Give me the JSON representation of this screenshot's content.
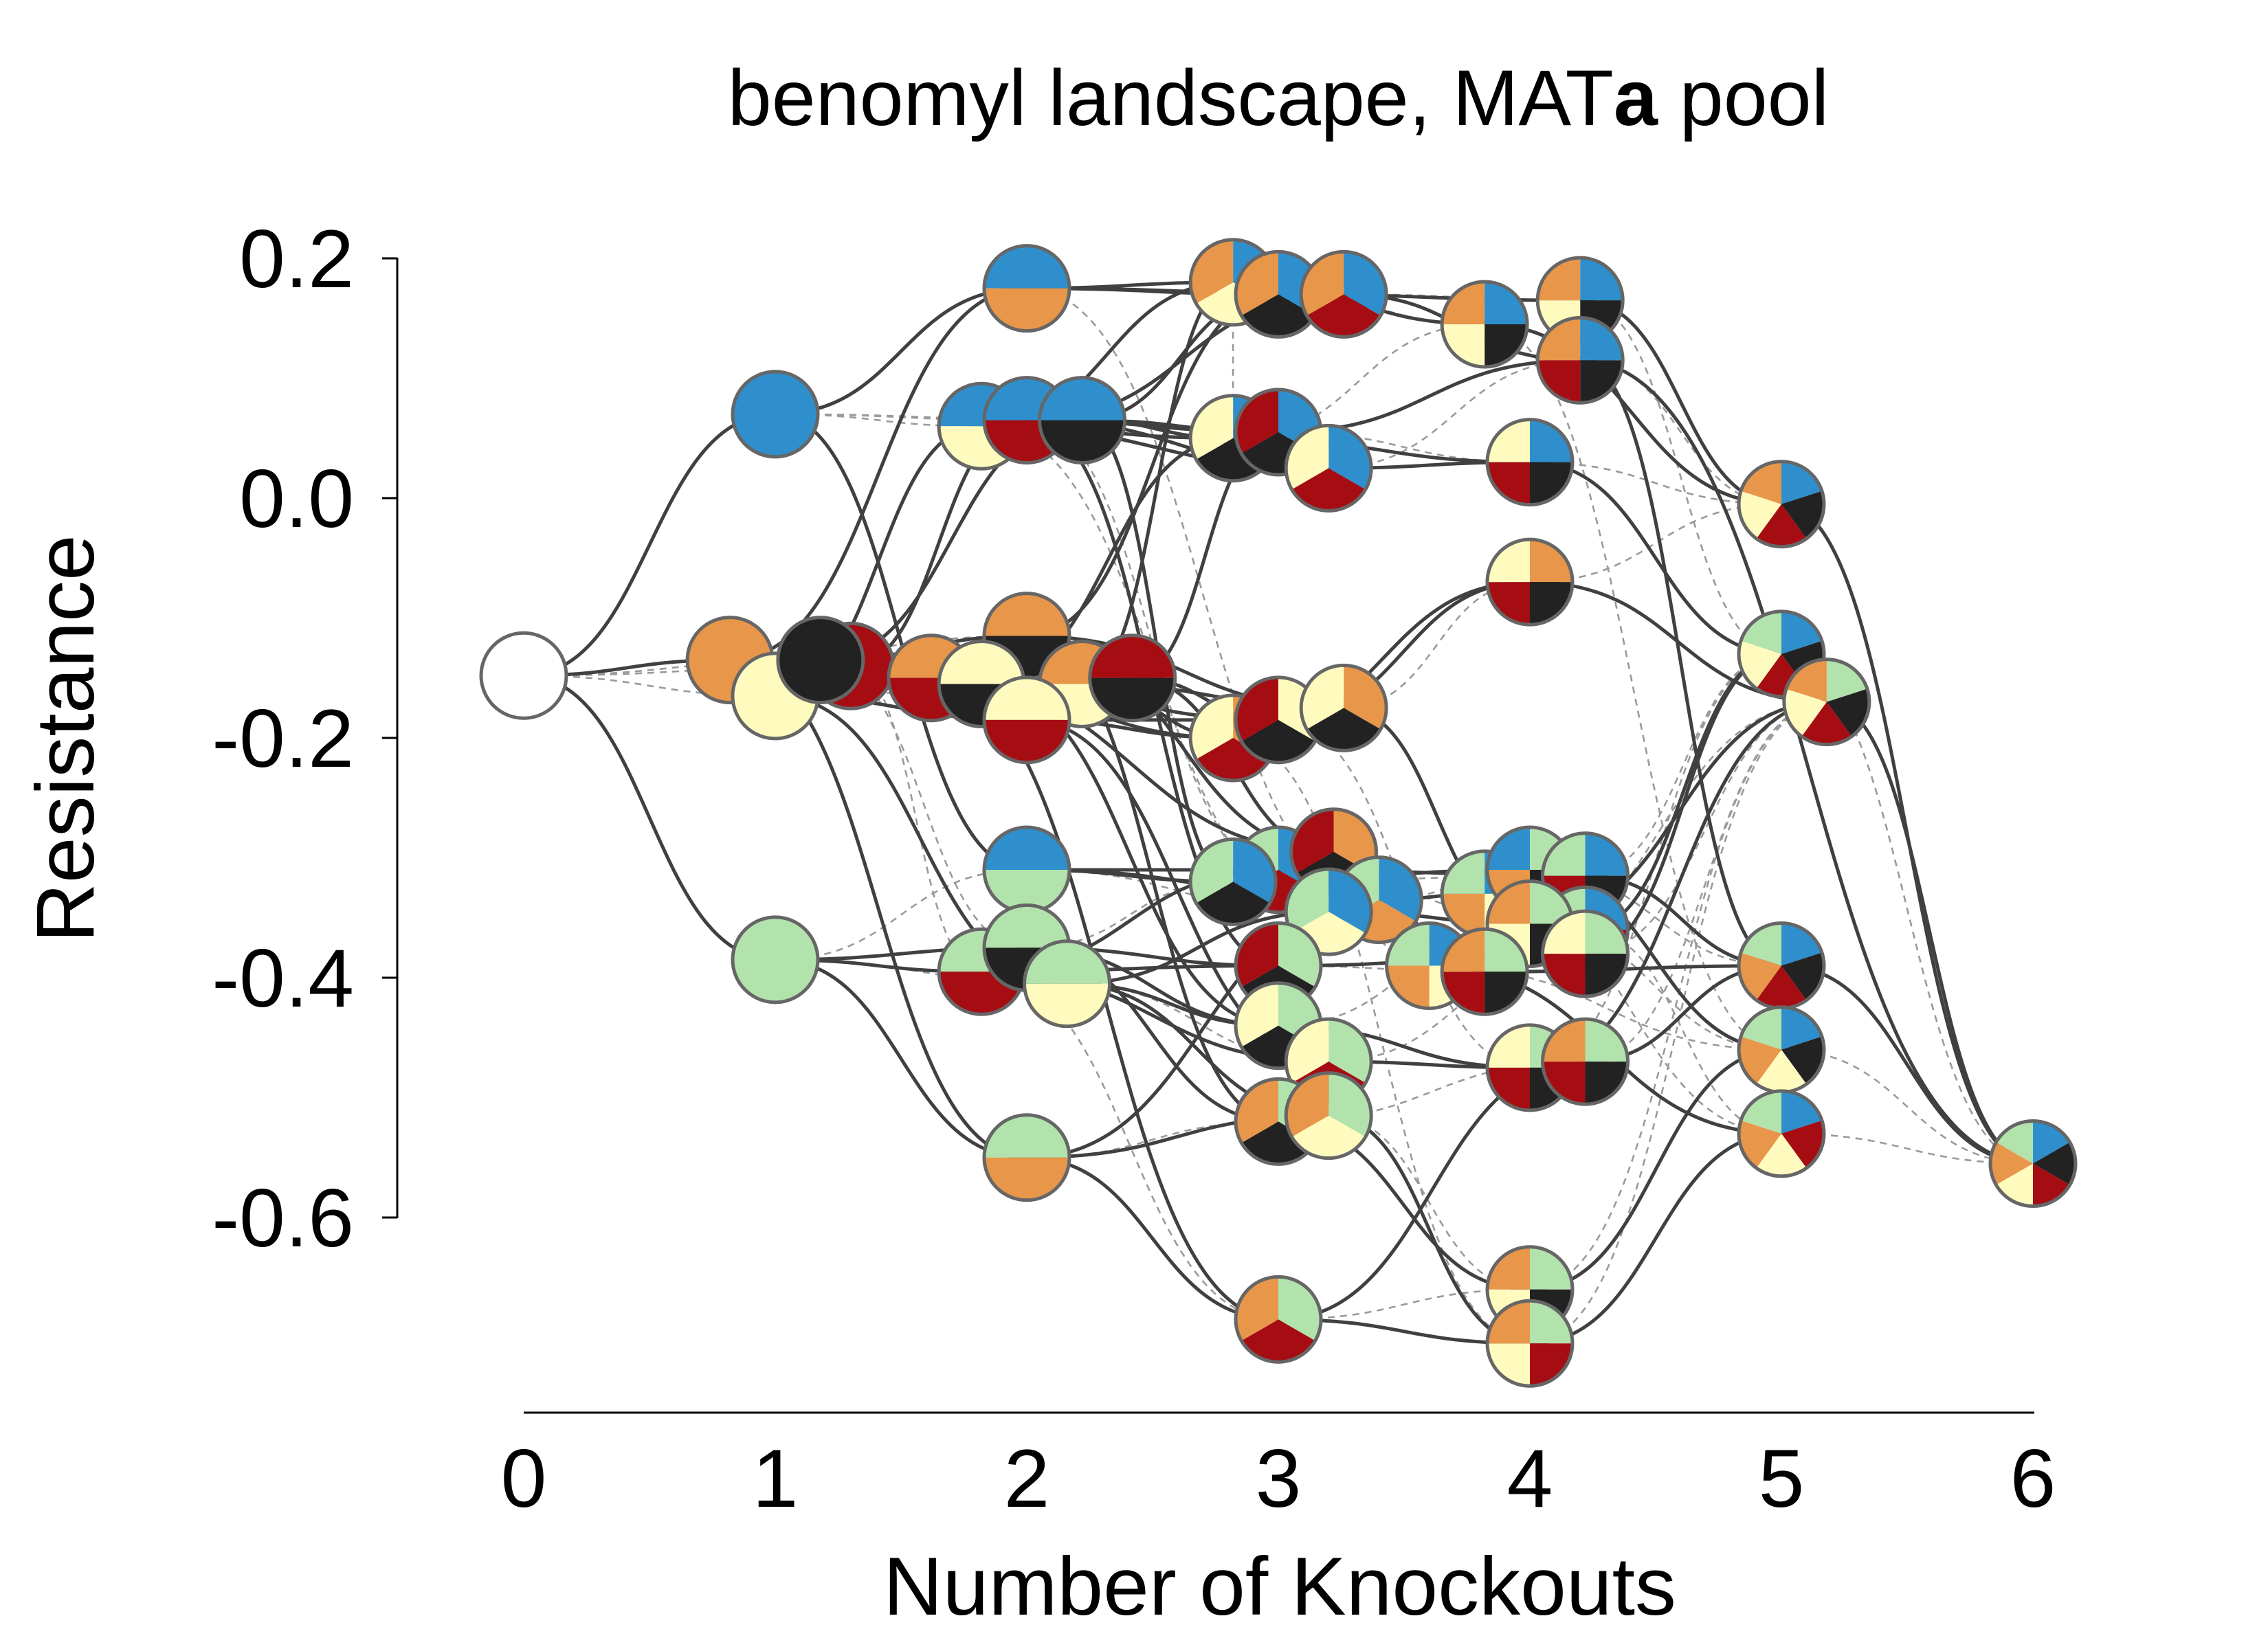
{
  "chart_data": {
    "type": "scatter",
    "title": "benomyl landscape, MAT",
    "title_bold_suffix": "a",
    "title_tail": " pool",
    "xlabel": "Number of Knockouts",
    "ylabel": "Resistance",
    "xlim": [
      0,
      6
    ],
    "ylim": [
      -0.75,
      0.2
    ],
    "xticks": [
      0,
      1,
      2,
      3,
      4,
      5,
      6
    ],
    "yticks": [
      0.2,
      0.0,
      -0.2,
      -0.4,
      -0.6
    ],
    "ytick_labels": [
      "0.2",
      "0.0",
      "-0.2",
      "-0.4",
      "-0.6"
    ],
    "genes": [
      "blue",
      "orange",
      "green",
      "yellow",
      "red",
      "black"
    ],
    "gene_colors": {
      "blue": "#2e8fcc",
      "orange": "#e8964a",
      "green": "#b2e3ad",
      "yellow": "#fffbbf",
      "red": "#a50d13",
      "black": "#222222",
      "none": "#ffffff"
    },
    "nodes": [
      {
        "id": "wt",
        "x": 0,
        "y": -0.148,
        "genes": []
      },
      {
        "id": "B",
        "x": 1,
        "y": 0.07,
        "genes": [
          "blue"
        ]
      },
      {
        "id": "O",
        "x": 0.82,
        "y": -0.135,
        "genes": [
          "orange"
        ]
      },
      {
        "id": "Y",
        "x": 1,
        "y": -0.165,
        "genes": [
          "yellow"
        ]
      },
      {
        "id": "R",
        "x": 1.3,
        "y": -0.14,
        "genes": [
          "red"
        ]
      },
      {
        "id": "K",
        "x": 1.18,
        "y": -0.135,
        "genes": [
          "black"
        ]
      },
      {
        "id": "G",
        "x": 1,
        "y": -0.385,
        "genes": [
          "green"
        ]
      },
      {
        "id": "BO",
        "x": 2,
        "y": 0.175,
        "genes": [
          "blue",
          "orange"
        ]
      },
      {
        "id": "BY",
        "x": 1.82,
        "y": 0.06,
        "genes": [
          "blue",
          "yellow"
        ]
      },
      {
        "id": "BR",
        "x": 2.0,
        "y": 0.065,
        "genes": [
          "blue",
          "red"
        ]
      },
      {
        "id": "BK",
        "x": 2.22,
        "y": 0.065,
        "genes": [
          "blue",
          "black"
        ]
      },
      {
        "id": "OR",
        "x": 1.62,
        "y": -0.15,
        "genes": [
          "orange",
          "red"
        ]
      },
      {
        "id": "OK",
        "x": 2.0,
        "y": -0.115,
        "genes": [
          "orange",
          "black"
        ]
      },
      {
        "id": "OY",
        "x": 2.22,
        "y": -0.155,
        "genes": [
          "orange",
          "yellow"
        ]
      },
      {
        "id": "YK",
        "x": 1.82,
        "y": -0.155,
        "genes": [
          "yellow",
          "black"
        ]
      },
      {
        "id": "YR",
        "x": 2.0,
        "y": -0.185,
        "genes": [
          "yellow",
          "red"
        ]
      },
      {
        "id": "RK",
        "x": 2.42,
        "y": -0.15,
        "genes": [
          "red",
          "black"
        ]
      },
      {
        "id": "BG",
        "x": 2.0,
        "y": -0.31,
        "genes": [
          "blue",
          "green"
        ]
      },
      {
        "id": "GR",
        "x": 1.82,
        "y": -0.395,
        "genes": [
          "green",
          "red"
        ]
      },
      {
        "id": "GK",
        "x": 2.0,
        "y": -0.375,
        "genes": [
          "green",
          "black"
        ]
      },
      {
        "id": "GY",
        "x": 2.16,
        "y": -0.405,
        "genes": [
          "green",
          "yellow"
        ]
      },
      {
        "id": "GO",
        "x": 2.0,
        "y": -0.55,
        "genes": [
          "green",
          "orange"
        ]
      },
      {
        "id": "BOY",
        "x": 2.82,
        "y": 0.18,
        "genes": [
          "blue",
          "yellow",
          "orange"
        ]
      },
      {
        "id": "BOK",
        "x": 3.0,
        "y": 0.17,
        "genes": [
          "blue",
          "black",
          "orange"
        ]
      },
      {
        "id": "BOR",
        "x": 3.26,
        "y": 0.17,
        "genes": [
          "blue",
          "red",
          "orange"
        ]
      },
      {
        "id": "BYK",
        "x": 2.82,
        "y": 0.05,
        "genes": [
          "blue",
          "black",
          "yellow"
        ]
      },
      {
        "id": "RBK",
        "x": 3.0,
        "y": 0.055,
        "genes": [
          "blue",
          "black",
          "red"
        ]
      },
      {
        "id": "BRY",
        "x": 3.2,
        "y": 0.025,
        "genes": [
          "blue",
          "red",
          "yellow"
        ]
      },
      {
        "id": "OYR",
        "x": 2.82,
        "y": -0.2,
        "genes": [
          "orange",
          "red",
          "yellow"
        ]
      },
      {
        "id": "YRK",
        "x": 3.0,
        "y": -0.185,
        "genes": [
          "yellow",
          "black",
          "red"
        ]
      },
      {
        "id": "OYK",
        "x": 3.26,
        "y": -0.175,
        "genes": [
          "orange",
          "black",
          "yellow"
        ]
      },
      {
        "id": "BGR",
        "x": 3.0,
        "y": -0.31,
        "genes": [
          "blue",
          "red",
          "green"
        ]
      },
      {
        "id": "BGK",
        "x": 2.82,
        "y": -0.32,
        "genes": [
          "blue",
          "black",
          "green"
        ]
      },
      {
        "id": "ORK",
        "x": 3.22,
        "y": -0.295,
        "genes": [
          "orange",
          "black",
          "red"
        ]
      },
      {
        "id": "BGO",
        "x": 3.4,
        "y": -0.335,
        "genes": [
          "blue",
          "orange",
          "green"
        ]
      },
      {
        "id": "BGY",
        "x": 3.2,
        "y": -0.345,
        "genes": [
          "blue",
          "yellow",
          "green"
        ]
      },
      {
        "id": "GRK",
        "x": 3.0,
        "y": -0.39,
        "genes": [
          "green",
          "black",
          "red"
        ]
      },
      {
        "id": "GYK",
        "x": 3.0,
        "y": -0.44,
        "genes": [
          "green",
          "black",
          "yellow"
        ]
      },
      {
        "id": "GRY",
        "x": 3.2,
        "y": -0.47,
        "genes": [
          "green",
          "red",
          "yellow"
        ]
      },
      {
        "id": "GOK",
        "x": 3.0,
        "y": -0.52,
        "genes": [
          "green",
          "black",
          "orange"
        ]
      },
      {
        "id": "GOY",
        "x": 3.2,
        "y": -0.515,
        "genes": [
          "green",
          "yellow",
          "orange"
        ]
      },
      {
        "id": "GOR",
        "x": 3.0,
        "y": -0.685,
        "genes": [
          "green",
          "red",
          "orange"
        ]
      },
      {
        "id": "BOYK",
        "x": 3.82,
        "y": 0.145,
        "genes": [
          "blue",
          "black",
          "yellow",
          "orange"
        ]
      },
      {
        "id": "BOYK2",
        "x": 4.2,
        "y": 0.165,
        "genes": [
          "blue",
          "black",
          "yellow",
          "orange"
        ]
      },
      {
        "id": "BORK",
        "x": 4.2,
        "y": 0.115,
        "genes": [
          "blue",
          "black",
          "red",
          "orange"
        ]
      },
      {
        "id": "BYRK",
        "x": 4.0,
        "y": 0.03,
        "genes": [
          "blue",
          "black",
          "red",
          "yellow"
        ]
      },
      {
        "id": "OYRK",
        "x": 4.0,
        "y": -0.07,
        "genes": [
          "orange",
          "black",
          "red",
          "yellow"
        ]
      },
      {
        "id": "BGOY",
        "x": 3.82,
        "y": -0.33,
        "genes": [
          "blue",
          "yellow",
          "orange",
          "green"
        ]
      },
      {
        "id": "BGOK",
        "x": 4.0,
        "y": -0.31,
        "genes": [
          "green",
          "black",
          "orange",
          "blue"
        ]
      },
      {
        "id": "BGRK",
        "x": 4.22,
        "y": -0.315,
        "genes": [
          "blue",
          "black",
          "red",
          "green"
        ]
      },
      {
        "id": "BGYR",
        "x": 4.22,
        "y": -0.36,
        "genes": [
          "blue",
          "red",
          "yellow",
          "green"
        ]
      },
      {
        "id": "GOYK",
        "x": 4.0,
        "y": -0.355,
        "genes": [
          "green",
          "black",
          "yellow",
          "orange"
        ]
      },
      {
        "id": "GYRK",
        "x": 4.22,
        "y": -0.38,
        "genes": [
          "green",
          "black",
          "red",
          "yellow"
        ]
      },
      {
        "id": "BGOY2",
        "x": 3.6,
        "y": -0.39,
        "genes": [
          "blue",
          "yellow",
          "orange",
          "green"
        ]
      },
      {
        "id": "GORK",
        "x": 3.82,
        "y": -0.395,
        "genes": [
          "green",
          "black",
          "red",
          "orange"
        ]
      },
      {
        "id": "GYRK2",
        "x": 4.0,
        "y": -0.475,
        "genes": [
          "green",
          "black",
          "red",
          "yellow"
        ]
      },
      {
        "id": "GORK2",
        "x": 4.22,
        "y": -0.47,
        "genes": [
          "green",
          "black",
          "red",
          "orange"
        ]
      },
      {
        "id": "GOYK2",
        "x": 4.0,
        "y": -0.66,
        "genes": [
          "green",
          "black",
          "yellow",
          "orange"
        ]
      },
      {
        "id": "GOYR",
        "x": 4.0,
        "y": -0.705,
        "genes": [
          "green",
          "red",
          "yellow",
          "orange"
        ]
      },
      {
        "id": "BOYRK",
        "x": 5.0,
        "y": -0.005,
        "genes": [
          "blue",
          "black",
          "red",
          "yellow",
          "orange"
        ]
      },
      {
        "id": "BGYRK",
        "x": 5.0,
        "y": -0.13,
        "genes": [
          "blue",
          "black",
          "red",
          "yellow",
          "green"
        ]
      },
      {
        "id": "GOYRK",
        "x": 5.18,
        "y": -0.17,
        "genes": [
          "green",
          "black",
          "red",
          "yellow",
          "orange"
        ]
      },
      {
        "id": "BGORK",
        "x": 5.0,
        "y": -0.39,
        "genes": [
          "blue",
          "black",
          "red",
          "orange",
          "green"
        ]
      },
      {
        "id": "BGOYK",
        "x": 5.0,
        "y": -0.46,
        "genes": [
          "blue",
          "black",
          "yellow",
          "orange",
          "green"
        ]
      },
      {
        "id": "BGOYR",
        "x": 5.0,
        "y": -0.53,
        "genes": [
          "blue",
          "red",
          "yellow",
          "orange",
          "green"
        ]
      },
      {
        "id": "ALL",
        "x": 6.0,
        "y": -0.555,
        "genes": [
          "blue",
          "black",
          "red",
          "yellow",
          "orange",
          "green"
        ]
      }
    ],
    "edges_solid": [
      [
        "wt",
        "B"
      ],
      [
        "wt",
        "G"
      ],
      [
        "wt",
        "O"
      ],
      [
        "B",
        "BO"
      ],
      [
        "B",
        "BG"
      ],
      [
        "Y",
        "BY"
      ],
      [
        "Y",
        "GY"
      ],
      [
        "Y",
        "YR"
      ],
      [
        "O",
        "BO"
      ],
      [
        "O",
        "GO"
      ],
      [
        "O",
        "OR"
      ],
      [
        "G",
        "GR"
      ],
      [
        "G",
        "GO"
      ],
      [
        "G",
        "GK"
      ],
      [
        "K",
        "BK"
      ],
      [
        "K",
        "OK"
      ],
      [
        "K",
        "YK"
      ],
      [
        "R",
        "BR"
      ],
      [
        "R",
        "OR"
      ],
      [
        "R",
        "YR"
      ],
      [
        "BO",
        "BOY"
      ],
      [
        "BO",
        "BOK"
      ],
      [
        "BO",
        "BOR"
      ],
      [
        "BY",
        "BYK"
      ],
      [
        "BY",
        "BRY"
      ],
      [
        "BY",
        "BOY"
      ],
      [
        "BR",
        "RBK"
      ],
      [
        "BR",
        "BRY"
      ],
      [
        "BR",
        "BOR"
      ],
      [
        "BR",
        "GRK"
      ],
      [
        "BK",
        "BOK"
      ],
      [
        "BK",
        "RBK"
      ],
      [
        "BK",
        "BYK"
      ],
      [
        "BK",
        "BGK"
      ],
      [
        "OR",
        "ORK"
      ],
      [
        "OR",
        "OYR"
      ],
      [
        "OR",
        "GOR"
      ],
      [
        "OK",
        "ORK"
      ],
      [
        "OK",
        "BOK"
      ],
      [
        "OK",
        "OYK"
      ],
      [
        "OK",
        "GOK"
      ],
      [
        "OY",
        "OYR"
      ],
      [
        "OY",
        "OYK"
      ],
      [
        "OY",
        "BOY"
      ],
      [
        "YK",
        "YRK"
      ],
      [
        "YK",
        "BYK"
      ],
      [
        "YK",
        "GYK"
      ],
      [
        "YR",
        "YRK"
      ],
      [
        "YR",
        "OYR"
      ],
      [
        "YR",
        "GRY"
      ],
      [
        "RK",
        "YRK"
      ],
      [
        "RK",
        "ORK"
      ],
      [
        "RK",
        "RBK"
      ],
      [
        "BG",
        "BGR"
      ],
      [
        "BG",
        "BGK"
      ],
      [
        "BG",
        "BGO"
      ],
      [
        "GR",
        "GRK"
      ],
      [
        "GR",
        "GRY"
      ],
      [
        "GR",
        "BGR"
      ],
      [
        "GK",
        "GRK"
      ],
      [
        "GK",
        "GYK"
      ],
      [
        "GK",
        "GOK"
      ],
      [
        "GY",
        "GYK"
      ],
      [
        "GY",
        "GOY"
      ],
      [
        "GY",
        "BGY"
      ],
      [
        "GO",
        "GOR"
      ],
      [
        "GO",
        "GOY"
      ],
      [
        "GO",
        "BGO"
      ],
      [
        "BOY",
        "BOYK"
      ],
      [
        "BOK",
        "BOYK2"
      ],
      [
        "BOR",
        "BORK"
      ],
      [
        "BYK",
        "BYRK"
      ],
      [
        "RBK",
        "BORK"
      ],
      [
        "BRY",
        "BYRK"
      ],
      [
        "OYR",
        "OYRK"
      ],
      [
        "YRK",
        "OYRK"
      ],
      [
        "OYK",
        "GOYK"
      ],
      [
        "BGR",
        "BGRK"
      ],
      [
        "BGK",
        "BGOK"
      ],
      [
        "ORK",
        "GORK"
      ],
      [
        "BGO",
        "BGOY"
      ],
      [
        "BGY",
        "BGYR"
      ],
      [
        "GRK",
        "GYRK"
      ],
      [
        "GYK",
        "GYRK2"
      ],
      [
        "GRY",
        "GYRK2"
      ],
      [
        "GOK",
        "GOYK2"
      ],
      [
        "GOY",
        "GOYR"
      ],
      [
        "GOR",
        "GORK2"
      ],
      [
        "GOR",
        "GOYR"
      ],
      [
        "BOYK",
        "BOYRK"
      ],
      [
        "BOYK2",
        "BOYRK"
      ],
      [
        "BORK",
        "BGORK"
      ],
      [
        "BYRK",
        "BGYRK"
      ],
      [
        "OYRK",
        "GOYRK"
      ],
      [
        "BGOK",
        "BGOYK"
      ],
      [
        "BGRK",
        "BGORK"
      ],
      [
        "BGYR",
        "BGYRK"
      ],
      [
        "GOYK",
        "GOYRK"
      ],
      [
        "GYRK",
        "BGYRK"
      ],
      [
        "GORK",
        "BGORK"
      ],
      [
        "GYRK2",
        "GOYRK"
      ],
      [
        "GORK2",
        "BGORK"
      ],
      [
        "GOYK2",
        "BGOYK"
      ],
      [
        "GOYR",
        "BGOYR"
      ],
      [
        "BGOY2",
        "BGOYR"
      ],
      [
        "BOYRK",
        "ALL"
      ],
      [
        "GOYRK",
        "ALL"
      ],
      [
        "BGORK",
        "ALL"
      ],
      [
        "BORK",
        "ALL"
      ]
    ],
    "edges_dashed": [
      [
        "wt",
        "Y"
      ],
      [
        "wt",
        "R"
      ],
      [
        "wt",
        "K"
      ],
      [
        "B",
        "BY"
      ],
      [
        "B",
        "BR"
      ],
      [
        "B",
        "BK"
      ],
      [
        "G",
        "BG"
      ],
      [
        "G",
        "GY"
      ],
      [
        "Y",
        "OY"
      ],
      [
        "Y",
        "YK"
      ],
      [
        "O",
        "OK"
      ],
      [
        "O",
        "OY"
      ],
      [
        "R",
        "RK"
      ],
      [
        "R",
        "GR"
      ],
      [
        "K",
        "RK"
      ],
      [
        "K",
        "GK"
      ],
      [
        "BO",
        "BGO"
      ],
      [
        "BY",
        "BGY"
      ],
      [
        "BR",
        "BGR"
      ],
      [
        "OR",
        "GOR"
      ],
      [
        "YK",
        "YRK"
      ],
      [
        "GO",
        "GOK"
      ],
      [
        "GO",
        "GOR"
      ],
      [
        "BG",
        "BGY"
      ],
      [
        "GR",
        "GOR"
      ],
      [
        "GK",
        "BGK"
      ],
      [
        "GY",
        "GRY"
      ],
      [
        "BOY",
        "BYK"
      ],
      [
        "BOK",
        "BOYK"
      ],
      [
        "BOR",
        "BOYK2"
      ],
      [
        "BYK",
        "BOYK"
      ],
      [
        "RBK",
        "BYRK"
      ],
      [
        "BRY",
        "BORK"
      ],
      [
        "OYR",
        "GOYR"
      ],
      [
        "OYK",
        "OYRK"
      ],
      [
        "YRK",
        "GYRK2"
      ],
      [
        "BGR",
        "BGYR"
      ],
      [
        "BGK",
        "BGRK"
      ],
      [
        "BGO",
        "BGOK"
      ],
      [
        "BGY",
        "BGOY2"
      ],
      [
        "GRK",
        "GORK"
      ],
      [
        "GYK",
        "GOYK"
      ],
      [
        "GRY",
        "GYRK"
      ],
      [
        "GOK",
        "GORK2"
      ],
      [
        "GOY",
        "GOYK2"
      ],
      [
        "GOR",
        "GOYK2"
      ],
      [
        "BOYK",
        "BGOYK"
      ],
      [
        "BOYK2",
        "BGYRK"
      ],
      [
        "BORK",
        "BOYRK"
      ],
      [
        "BYRK",
        "BOYRK"
      ],
      [
        "OYRK",
        "BOYRK"
      ],
      [
        "BGOY",
        "BGOYR"
      ],
      [
        "BGOK",
        "BGORK"
      ],
      [
        "BGRK",
        "BGYRK"
      ],
      [
        "BGYR",
        "BGOYR"
      ],
      [
        "GOYK",
        "BGOYK"
      ],
      [
        "GYRK",
        "GOYRK"
      ],
      [
        "GORK",
        "GOYRK"
      ],
      [
        "GYRK2",
        "BGYRK"
      ],
      [
        "GORK2",
        "GOYRK"
      ],
      [
        "GOYK2",
        "GOYRK"
      ],
      [
        "GOYR",
        "GOYRK"
      ],
      [
        "BGOY2",
        "BGOYK"
      ],
      [
        "BGYRK",
        "ALL"
      ],
      [
        "BGOYK",
        "ALL"
      ],
      [
        "BGOYR",
        "ALL"
      ]
    ]
  }
}
